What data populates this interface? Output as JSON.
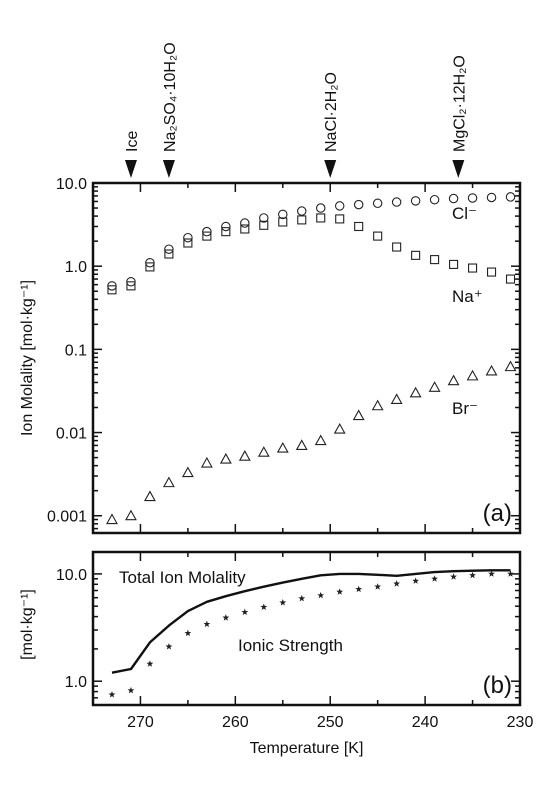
{
  "chart_data": [
    {
      "type": "scatter",
      "panel_label": "(a)",
      "ylabel": "Ion Molality [mol·kg⁻¹]",
      "yscale": "log",
      "ylim": [
        0.0006,
        10
      ],
      "xlim": [
        275,
        230
      ],
      "x_reversed": true,
      "yticks": [
        "10.0",
        "1.0",
        "0.1",
        "0.01",
        "0.001"
      ],
      "ytick_values": [
        10,
        1,
        0.1,
        0.01,
        0.001
      ],
      "phase_markers": [
        {
          "label": "Ice",
          "x": 271
        },
        {
          "label": "Na₂SO₄·10H₂O",
          "x": 267
        },
        {
          "label": "NaCl·2H₂O",
          "x": 250
        },
        {
          "label": "MgCl₂·12H₂O",
          "x": 236.5
        }
      ],
      "series": [
        {
          "name": "Cl⁻",
          "marker": "circle",
          "x": [
            273,
            271,
            269,
            267,
            265,
            263,
            261,
            259,
            257,
            255,
            253,
            251,
            249,
            247,
            245,
            243,
            241,
            239,
            237,
            235,
            233,
            231
          ],
          "y": [
            0.58,
            0.65,
            1.1,
            1.6,
            2.2,
            2.6,
            3.0,
            3.3,
            3.8,
            4.2,
            4.6,
            5.0,
            5.3,
            5.5,
            5.7,
            5.9,
            6.1,
            6.3,
            6.5,
            6.6,
            6.7,
            6.8
          ]
        },
        {
          "name": "Na⁺",
          "marker": "square",
          "x": [
            273,
            271,
            269,
            267,
            265,
            263,
            261,
            259,
            257,
            255,
            253,
            251,
            249,
            247,
            245,
            243,
            241,
            239,
            237,
            235,
            233,
            231
          ],
          "y": [
            0.52,
            0.58,
            0.98,
            1.4,
            1.9,
            2.3,
            2.6,
            2.8,
            3.1,
            3.4,
            3.6,
            3.8,
            3.7,
            3.0,
            2.3,
            1.7,
            1.35,
            1.2,
            1.05,
            0.95,
            0.85,
            0.7
          ]
        },
        {
          "name": "Br⁻",
          "marker": "triangle",
          "x": [
            273,
            271,
            269,
            267,
            265,
            263,
            261,
            259,
            257,
            255,
            253,
            251,
            249,
            247,
            245,
            243,
            241,
            239,
            237,
            235,
            233,
            231
          ],
          "y": [
            0.0009,
            0.001,
            0.0017,
            0.0025,
            0.0033,
            0.0043,
            0.0048,
            0.0052,
            0.0058,
            0.0065,
            0.007,
            0.008,
            0.011,
            0.016,
            0.021,
            0.025,
            0.03,
            0.035,
            0.042,
            0.048,
            0.055,
            0.062
          ]
        }
      ]
    },
    {
      "type": "line",
      "panel_label": "(b)",
      "ylabel": "[mol·kg⁻¹]",
      "xlabel": "Temperature [K]",
      "yscale": "log",
      "ylim": [
        0.6,
        16
      ],
      "xlim": [
        275,
        230
      ],
      "x_reversed": true,
      "yticks": [
        "10.0",
        "1.0"
      ],
      "ytick_values": [
        10,
        1
      ],
      "xticks": [
        "270",
        "260",
        "250",
        "240",
        "230"
      ],
      "xtick_values": [
        270,
        260,
        250,
        240,
        230
      ],
      "series": [
        {
          "name": "Total Ion Molality",
          "style": "line",
          "x": [
            273,
            271,
            269,
            267,
            265,
            263,
            261,
            259,
            257,
            255,
            253,
            251,
            249,
            247,
            245,
            243,
            241,
            239,
            237,
            235,
            233,
            231
          ],
          "y": [
            1.2,
            1.3,
            2.3,
            3.3,
            4.5,
            5.5,
            6.2,
            6.9,
            7.6,
            8.3,
            9.0,
            9.7,
            10.0,
            10.0,
            9.8,
            9.6,
            10.0,
            10.4,
            10.6,
            10.7,
            10.8,
            10.8
          ]
        },
        {
          "name": "Ionic Strength",
          "style": "star",
          "x": [
            273,
            271,
            269,
            267,
            265,
            263,
            261,
            259,
            257,
            255,
            253,
            251,
            249,
            247,
            245,
            243,
            241,
            239,
            237,
            235,
            233,
            231
          ],
          "y": [
            0.75,
            0.82,
            1.45,
            2.1,
            2.8,
            3.4,
            3.9,
            4.4,
            4.9,
            5.4,
            5.9,
            6.3,
            6.8,
            7.2,
            7.6,
            8.1,
            8.6,
            9.0,
            9.4,
            9.7,
            10.0,
            10.0
          ]
        }
      ]
    }
  ]
}
